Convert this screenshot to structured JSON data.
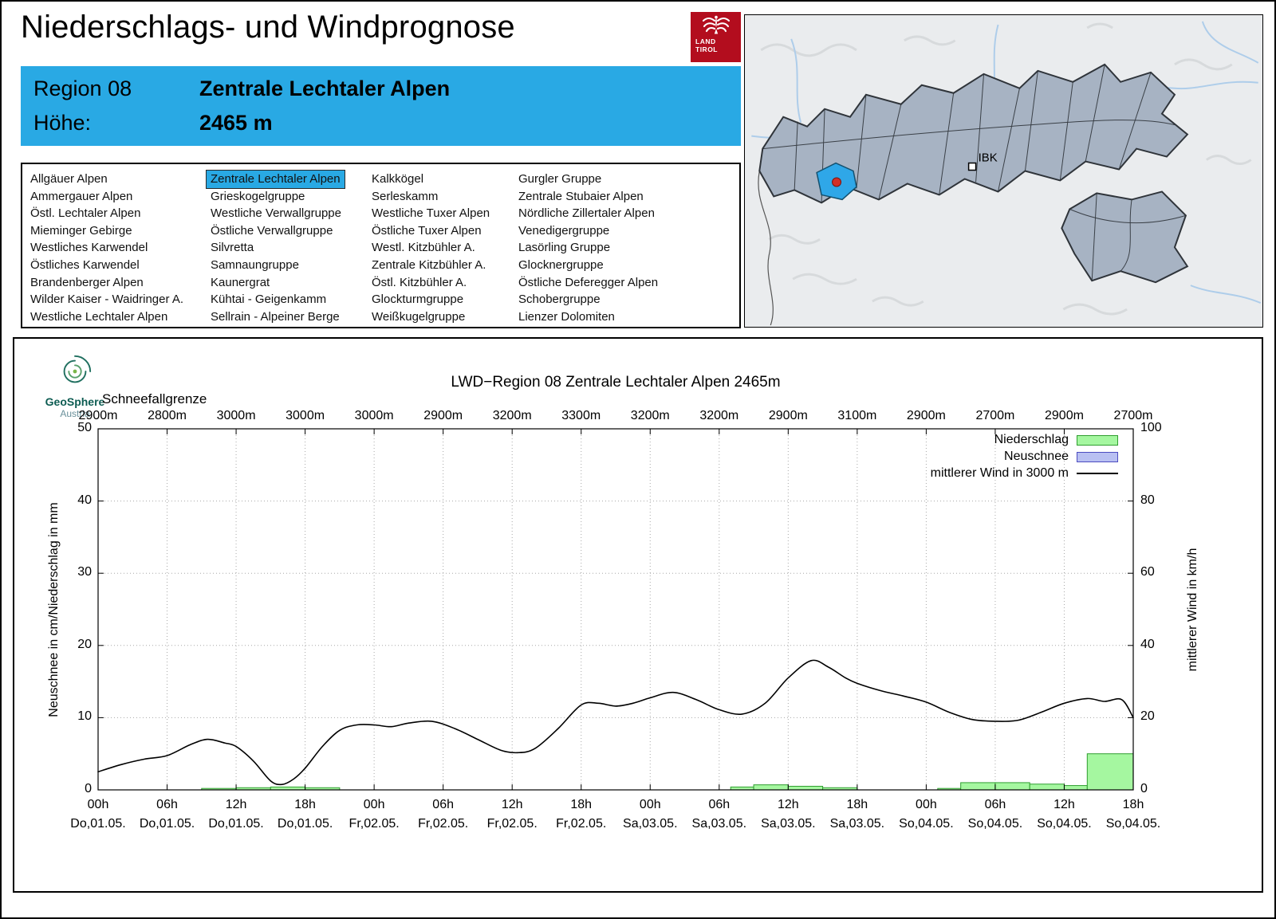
{
  "page": {
    "title": "Niederschlags- und Windprognose"
  },
  "land_tirol_logo": {
    "line1": "LAND",
    "line2": "TIROL"
  },
  "header": {
    "region_label": "Region 08",
    "region_value": "Zentrale Lechtaler Alpen",
    "altitude_label": "Höhe:",
    "altitude_value": "2465 m"
  },
  "map": {
    "marker_label": "IBK"
  },
  "geosphere_logo": {
    "name": "GeoSphere",
    "country": "Austria"
  },
  "region_list": {
    "selected": "Zentrale Lechtaler Alpen",
    "columns": [
      [
        "Allgäuer Alpen",
        "Ammergauer Alpen",
        "Östl. Lechtaler Alpen",
        "Mieminger Gebirge",
        "Westliches Karwendel",
        "Östliches Karwendel",
        "Brandenberger Alpen",
        "Wilder Kaiser - Waidringer A.",
        "Westliche Lechtaler Alpen"
      ],
      [
        "Zentrale Lechtaler Alpen",
        "Grieskogelgruppe",
        "Westliche Verwallgruppe",
        "Östliche Verwallgruppe",
        "Silvretta",
        "Samnaungruppe",
        "Kaunergrat",
        "Kühtai - Geigenkamm",
        "Sellrain - Alpeiner Berge"
      ],
      [
        "Kalkkögel",
        "Serleskamm",
        "Westliche Tuxer Alpen",
        "Östliche Tuxer Alpen",
        "Westl. Kitzbühler A.",
        "Zentrale Kitzbühler A.",
        "Östl. Kitzbühler A.",
        "Glockturmgruppe",
        "Weißkugelgruppe"
      ],
      [
        "Gurgler Gruppe",
        "Zentrale Stubaier Alpen",
        "Nördliche Zillertaler Alpen",
        "Venedigergruppe",
        "Lasörling Gruppe",
        "Glocknergruppe",
        "Östliche Deferegger Alpen",
        "Schobergruppe",
        "Lienzer Dolomiten"
      ]
    ]
  },
  "colors": {
    "header_bg": "#29a9e4",
    "selected_region_bg": "#29a9e4",
    "land_tirol_red": "#b30d1e",
    "map_region_fill": "#a7b3c3",
    "map_selected_fill": "#2fa7e8",
    "map_marker_red": "#d22f27"
  },
  "chart_data": {
    "type": "combo-bar-line",
    "title": "LWD−Region 08 Zentrale Lechtaler Alpen 2465m",
    "snowline_label": "Schneefallgrenze",
    "snowline_values": [
      "2900m",
      "2800m",
      "3000m",
      "3000m",
      "3000m",
      "2900m",
      "3200m",
      "3300m",
      "3200m",
      "3200m",
      "2900m",
      "3100m",
      "2900m",
      "2700m",
      "2900m",
      "2700m"
    ],
    "ylabel_left": "Neuschnee in cm/Niederschlag in mm",
    "ylabel_right": "mittlerer Wind in km/h",
    "ylim_left": [
      0,
      50
    ],
    "ylim_right": [
      0,
      100
    ],
    "y_left_ticks": [
      0,
      10,
      20,
      30,
      40,
      50
    ],
    "y_right_ticks": [
      0,
      20,
      40,
      60,
      80,
      100
    ],
    "x_hours_range": [
      0,
      90
    ],
    "x_tick_hours": [
      0,
      6,
      12,
      18,
      24,
      30,
      36,
      42,
      48,
      54,
      60,
      66,
      72,
      78,
      84,
      90
    ],
    "x_tick_times": [
      "00h",
      "06h",
      "12h",
      "18h",
      "00h",
      "06h",
      "12h",
      "18h",
      "00h",
      "06h",
      "12h",
      "18h",
      "00h",
      "06h",
      "12h",
      "18h"
    ],
    "x_tick_dates": [
      "Do,01.05.",
      "Do,01.05.",
      "Do,01.05.",
      "Do,01.05.",
      "Fr,02.05.",
      "Fr,02.05.",
      "Fr,02.05.",
      "Fr,02.05.",
      "Sa,03.05.",
      "Sa,03.05.",
      "Sa,03.05.",
      "Sa,03.05.",
      "So,04.05.",
      "So,04.05.",
      "So,04.05.",
      "So,04.05."
    ],
    "grid": "dotted",
    "legend_position": "top-right-inside",
    "legend": [
      {
        "label": "Niederschlag",
        "swatch": "precip"
      },
      {
        "label": "Neuschnee",
        "swatch": "snow"
      },
      {
        "label": "mittlerer Wind in 3000 m",
        "swatch": "wind"
      }
    ],
    "precipitation_mm": {
      "bar_width_hours": 3,
      "bars": [
        {
          "t": 9,
          "v": 0.2
        },
        {
          "t": 12,
          "v": 0.3
        },
        {
          "t": 15,
          "v": 0.4
        },
        {
          "t": 18,
          "v": 0.3
        },
        {
          "t": 55,
          "v": 0.4,
          "w": 2
        },
        {
          "t": 57,
          "v": 0.7
        },
        {
          "t": 60,
          "v": 0.5
        },
        {
          "t": 63,
          "v": 0.3
        },
        {
          "t": 73,
          "v": 0.2,
          "w": 2
        },
        {
          "t": 75,
          "v": 1.0
        },
        {
          "t": 78,
          "v": 1.0
        },
        {
          "t": 81,
          "v": 0.8
        },
        {
          "t": 84,
          "v": 0.6,
          "w": 2
        },
        {
          "t": 86,
          "v": 5.0,
          "w": 4
        }
      ]
    },
    "new_snow_cm": {
      "bar_width_hours": 3,
      "bars": []
    },
    "wind_kmh": {
      "x_hours": [
        0,
        2,
        4,
        6,
        8,
        9.5,
        11,
        12,
        13.5,
        15,
        16,
        17,
        18,
        19.5,
        21,
        22.5,
        24,
        25.5,
        27,
        29,
        31,
        33,
        35,
        36.5,
        38,
        40,
        42,
        43.5,
        45,
        46.5,
        48,
        50,
        52,
        54,
        56,
        58,
        60,
        62,
        63.5,
        65,
        66,
        68,
        70,
        72,
        74,
        76,
        78,
        80,
        82,
        84,
        86,
        87.5,
        89,
        90
      ],
      "values": [
        5,
        7,
        8.5,
        9.5,
        12.5,
        14,
        13,
        12,
        8,
        2.5,
        1.5,
        3,
        6,
        12,
        16.5,
        18,
        18,
        17.5,
        18.5,
        19,
        17,
        14,
        11,
        10.3,
        11.5,
        17,
        23.5,
        24,
        23.2,
        24,
        25.5,
        27,
        25,
        22.2,
        21,
        24,
        31,
        35.8,
        34,
        31,
        29.5,
        27.5,
        26,
        24.3,
        21.5,
        19.5,
        19,
        19.3,
        21.5,
        24,
        25.3,
        24.5,
        25,
        20
      ]
    },
    "colors": {
      "precip_fill": "#a5f7a0",
      "precip_stroke": "#2f9e2f",
      "snow_fill": "#b9c0f2",
      "snow_stroke": "#4c4cc0",
      "wind_line": "#000000",
      "grid": "#a8a8a8"
    }
  }
}
